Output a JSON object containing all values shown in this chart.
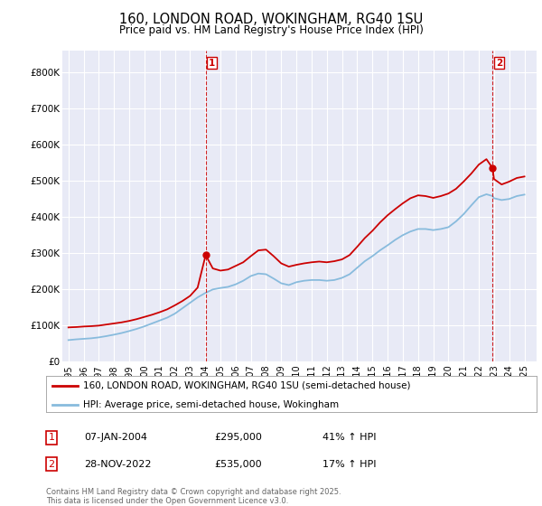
{
  "title": "160, LONDON ROAD, WOKINGHAM, RG40 1SU",
  "subtitle": "Price paid vs. HM Land Registry's House Price Index (HPI)",
  "ylim": [
    0,
    860000
  ],
  "yticks": [
    0,
    100000,
    200000,
    300000,
    400000,
    500000,
    600000,
    700000,
    800000
  ],
  "ytick_labels": [
    "£0",
    "£100K",
    "£200K",
    "£300K",
    "£400K",
    "£500K",
    "£600K",
    "£700K",
    "£800K"
  ],
  "xlim_start": 1994.6,
  "xlim_end": 2025.8,
  "xticks": [
    1995,
    1996,
    1997,
    1998,
    1999,
    2000,
    2001,
    2002,
    2003,
    2004,
    2005,
    2006,
    2007,
    2008,
    2009,
    2010,
    2011,
    2012,
    2013,
    2014,
    2015,
    2016,
    2017,
    2018,
    2019,
    2020,
    2021,
    2022,
    2023,
    2024,
    2025
  ],
  "background_color": "#ffffff",
  "plot_bg_color": "#e8eaf6",
  "grid_color": "#ffffff",
  "house_line_color": "#cc0000",
  "hpi_line_color": "#88bbdd",
  "marker1_x": 2004.03,
  "marker1_y": 295000,
  "marker2_x": 2022.91,
  "marker2_y": 535000,
  "vline1_x": 2004.03,
  "vline2_x": 2022.91,
  "legend_house": "160, LONDON ROAD, WOKINGHAM, RG40 1SU (semi-detached house)",
  "legend_hpi": "HPI: Average price, semi-detached house, Wokingham",
  "annotation1_num": "1",
  "annotation1_date": "07-JAN-2004",
  "annotation1_price": "£295,000",
  "annotation1_hpi": "41% ↑ HPI",
  "annotation2_num": "2",
  "annotation2_date": "28-NOV-2022",
  "annotation2_price": "£535,000",
  "annotation2_hpi": "17% ↑ HPI",
  "footer": "Contains HM Land Registry data © Crown copyright and database right 2025.\nThis data is licensed under the Open Government Licence v3.0.",
  "house_data": [
    [
      1995.0,
      95000
    ],
    [
      1995.2,
      95500
    ],
    [
      1995.5,
      96000
    ],
    [
      1996.0,
      97500
    ],
    [
      1996.5,
      98500
    ],
    [
      1997.0,
      100000
    ],
    [
      1997.5,
      103000
    ],
    [
      1998.0,
      106000
    ],
    [
      1998.5,
      109000
    ],
    [
      1999.0,
      113000
    ],
    [
      1999.5,
      118000
    ],
    [
      2000.0,
      124000
    ],
    [
      2000.5,
      130000
    ],
    [
      2001.0,
      137000
    ],
    [
      2001.5,
      145000
    ],
    [
      2002.0,
      156000
    ],
    [
      2002.5,
      168000
    ],
    [
      2003.0,
      182000
    ],
    [
      2003.5,
      205000
    ],
    [
      2004.03,
      295000
    ],
    [
      2004.5,
      258000
    ],
    [
      2005.0,
      252000
    ],
    [
      2005.5,
      255000
    ],
    [
      2006.0,
      265000
    ],
    [
      2006.5,
      275000
    ],
    [
      2007.0,
      292000
    ],
    [
      2007.5,
      308000
    ],
    [
      2008.0,
      310000
    ],
    [
      2008.5,
      292000
    ],
    [
      2009.0,
      272000
    ],
    [
      2009.5,
      263000
    ],
    [
      2010.0,
      268000
    ],
    [
      2010.5,
      272000
    ],
    [
      2011.0,
      275000
    ],
    [
      2011.5,
      277000
    ],
    [
      2012.0,
      275000
    ],
    [
      2012.5,
      278000
    ],
    [
      2013.0,
      283000
    ],
    [
      2013.5,
      295000
    ],
    [
      2014.0,
      318000
    ],
    [
      2014.5,
      342000
    ],
    [
      2015.0,
      362000
    ],
    [
      2015.5,
      385000
    ],
    [
      2016.0,
      405000
    ],
    [
      2016.5,
      422000
    ],
    [
      2017.0,
      438000
    ],
    [
      2017.5,
      452000
    ],
    [
      2018.0,
      460000
    ],
    [
      2018.5,
      458000
    ],
    [
      2019.0,
      453000
    ],
    [
      2019.5,
      458000
    ],
    [
      2020.0,
      465000
    ],
    [
      2020.5,
      478000
    ],
    [
      2021.0,
      498000
    ],
    [
      2021.5,
      520000
    ],
    [
      2022.0,
      545000
    ],
    [
      2022.5,
      560000
    ],
    [
      2022.91,
      535000
    ],
    [
      2023.0,
      505000
    ],
    [
      2023.5,
      490000
    ],
    [
      2024.0,
      498000
    ],
    [
      2024.5,
      508000
    ],
    [
      2025.0,
      512000
    ]
  ],
  "hpi_data": [
    [
      1995.0,
      60000
    ],
    [
      1995.5,
      62000
    ],
    [
      1996.0,
      63500
    ],
    [
      1996.5,
      65000
    ],
    [
      1997.0,
      67500
    ],
    [
      1997.5,
      71000
    ],
    [
      1998.0,
      75000
    ],
    [
      1998.5,
      79500
    ],
    [
      1999.0,
      85000
    ],
    [
      1999.5,
      91000
    ],
    [
      2000.0,
      98000
    ],
    [
      2000.5,
      106000
    ],
    [
      2001.0,
      114000
    ],
    [
      2001.5,
      122000
    ],
    [
      2002.0,
      133000
    ],
    [
      2002.5,
      148000
    ],
    [
      2003.0,
      163000
    ],
    [
      2003.5,
      178000
    ],
    [
      2004.0,
      190000
    ],
    [
      2004.5,
      200000
    ],
    [
      2005.0,
      204000
    ],
    [
      2005.5,
      207000
    ],
    [
      2006.0,
      214000
    ],
    [
      2006.5,
      224000
    ],
    [
      2007.0,
      237000
    ],
    [
      2007.5,
      244000
    ],
    [
      2008.0,
      242000
    ],
    [
      2008.5,
      230000
    ],
    [
      2009.0,
      217000
    ],
    [
      2009.5,
      212000
    ],
    [
      2010.0,
      220000
    ],
    [
      2010.5,
      224000
    ],
    [
      2011.0,
      226000
    ],
    [
      2011.5,
      226000
    ],
    [
      2012.0,
      224000
    ],
    [
      2012.5,
      226000
    ],
    [
      2013.0,
      232000
    ],
    [
      2013.5,
      242000
    ],
    [
      2014.0,
      260000
    ],
    [
      2014.5,
      278000
    ],
    [
      2015.0,
      292000
    ],
    [
      2015.5,
      308000
    ],
    [
      2016.0,
      322000
    ],
    [
      2016.5,
      337000
    ],
    [
      2017.0,
      350000
    ],
    [
      2017.5,
      360000
    ],
    [
      2018.0,
      367000
    ],
    [
      2018.5,
      367000
    ],
    [
      2019.0,
      364000
    ],
    [
      2019.5,
      367000
    ],
    [
      2020.0,
      372000
    ],
    [
      2020.5,
      388000
    ],
    [
      2021.0,
      408000
    ],
    [
      2021.5,
      432000
    ],
    [
      2022.0,
      455000
    ],
    [
      2022.5,
      463000
    ],
    [
      2022.91,
      458000
    ],
    [
      2023.0,
      452000
    ],
    [
      2023.5,
      447000
    ],
    [
      2024.0,
      450000
    ],
    [
      2024.5,
      458000
    ],
    [
      2025.0,
      462000
    ]
  ]
}
